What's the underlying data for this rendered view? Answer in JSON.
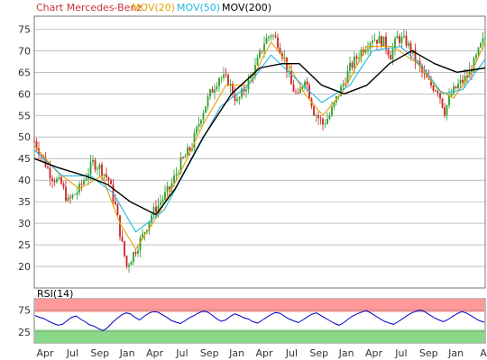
{
  "legend": [
    {
      "label": "Chart Mercedes-Benz",
      "color": "#cc3333"
    },
    {
      "label": "MOV(20)",
      "color": "#e8a000"
    },
    {
      "label": "MOV(50)",
      "color": "#22b8e0"
    },
    {
      "label": "MOV(200)",
      "color": "#000000"
    }
  ],
  "rsi_label": "RSI(14)",
  "colors": {
    "up": "#2e9e2e",
    "down": "#cc2222",
    "grid": "#999999",
    "rsi_line": "#0000cc",
    "rsi_high_band": "#ff9999",
    "rsi_low_band": "#88d888",
    "plot_bg": "#ffffff"
  },
  "chart_data": [
    {
      "type": "candlestick",
      "title": "Chart Mercedes-Benz",
      "ylim": [
        15,
        78
      ],
      "y_ticks": [
        20,
        25,
        30,
        35,
        40,
        45,
        50,
        55,
        60,
        65,
        70,
        75
      ],
      "x_ticks": [
        "Apr",
        "Jul",
        "Sep",
        "Jan",
        "Apr",
        "Jul",
        "Sep",
        "Jan",
        "Apr",
        "Jul",
        "Sep",
        "Jan",
        "Apr",
        "Jul",
        "Sep",
        "Jan",
        "A"
      ],
      "grid": true,
      "price_path": [
        [
          0,
          49
        ],
        [
          6,
          46
        ],
        [
          15,
          41
        ],
        [
          24,
          39
        ],
        [
          30,
          35
        ],
        [
          40,
          38
        ],
        [
          52,
          44
        ],
        [
          58,
          43
        ],
        [
          66,
          40
        ],
        [
          72,
          34
        ],
        [
          78,
          25
        ],
        [
          82,
          20
        ],
        [
          88,
          23
        ],
        [
          96,
          27
        ],
        [
          104,
          32
        ],
        [
          112,
          35
        ],
        [
          120,
          38
        ],
        [
          130,
          44
        ],
        [
          140,
          48
        ],
        [
          148,
          55
        ],
        [
          156,
          60
        ],
        [
          164,
          64
        ],
        [
          172,
          63
        ],
        [
          180,
          58
        ],
        [
          188,
          62
        ],
        [
          196,
          66
        ],
        [
          204,
          72
        ],
        [
          210,
          74
        ],
        [
          216,
          72
        ],
        [
          222,
          68
        ],
        [
          228,
          62
        ],
        [
          234,
          59
        ],
        [
          240,
          64
        ],
        [
          248,
          56
        ],
        [
          256,
          53
        ],
        [
          262,
          55
        ],
        [
          270,
          60
        ],
        [
          280,
          66
        ],
        [
          290,
          70
        ],
        [
          300,
          73
        ],
        [
          310,
          72
        ],
        [
          316,
          69
        ],
        [
          322,
          73
        ],
        [
          330,
          72
        ],
        [
          338,
          68
        ],
        [
          346,
          64
        ],
        [
          352,
          62
        ],
        [
          358,
          61
        ],
        [
          364,
          56
        ],
        [
          370,
          60
        ],
        [
          376,
          62
        ],
        [
          384,
          64
        ],
        [
          390,
          67
        ],
        [
          396,
          71
        ],
        [
          400,
          73
        ]
      ],
      "series": [
        {
          "name": "MOV(20)",
          "values": [
            [
              0,
              48
            ],
            [
              20,
              42
            ],
            [
              40,
              38
            ],
            [
              60,
              41
            ],
            [
              76,
              30
            ],
            [
              90,
              24
            ],
            [
              110,
              32
            ],
            [
              130,
              42
            ],
            [
              150,
              53
            ],
            [
              170,
              62
            ],
            [
              190,
              62
            ],
            [
              210,
              72
            ],
            [
              225,
              67
            ],
            [
              240,
              60
            ],
            [
              256,
              55
            ],
            [
              275,
              61
            ],
            [
              295,
              71
            ],
            [
              318,
              71
            ],
            [
              340,
              67
            ],
            [
              358,
              61
            ],
            [
              372,
              59
            ],
            [
              388,
              65
            ],
            [
              400,
              72
            ]
          ]
        },
        {
          "name": "MOV(50)",
          "values": [
            [
              0,
              47
            ],
            [
              25,
              41
            ],
            [
              50,
              41
            ],
            [
              70,
              37
            ],
            [
              90,
              28
            ],
            [
              115,
              33
            ],
            [
              140,
              45
            ],
            [
              165,
              57
            ],
            [
              190,
              62
            ],
            [
              210,
              69
            ],
            [
              230,
              64
            ],
            [
              255,
              58
            ],
            [
              280,
              62
            ],
            [
              300,
              70
            ],
            [
              325,
              71
            ],
            [
              345,
              66
            ],
            [
              362,
              60
            ],
            [
              380,
              61
            ],
            [
              400,
              68
            ]
          ]
        },
        {
          "name": "MOV(200)",
          "values": [
            [
              0,
              45
            ],
            [
              20,
              43
            ],
            [
              45,
              41
            ],
            [
              65,
              39
            ],
            [
              85,
              35
            ],
            [
              108,
              32
            ],
            [
              125,
              38
            ],
            [
              150,
              50
            ],
            [
              175,
              60
            ],
            [
              200,
              66
            ],
            [
              220,
              67
            ],
            [
              235,
              67
            ],
            [
              255,
              62
            ],
            [
              275,
              60
            ],
            [
              295,
              62
            ],
            [
              315,
              67
            ],
            [
              335,
              70
            ],
            [
              355,
              67
            ],
            [
              375,
              65
            ],
            [
              400,
              66
            ]
          ]
        }
      ]
    },
    {
      "type": "line",
      "title": "RSI(14)",
      "ylim": [
        0,
        100
      ],
      "y_ticks": [
        25,
        75
      ],
      "bands": {
        "high": [
          70,
          100
        ],
        "low": [
          0,
          30
        ]
      },
      "series": [
        {
          "name": "RSI(14)",
          "values": [
            62,
            58,
            55,
            49,
            44,
            40,
            42,
            50,
            58,
            61,
            54,
            48,
            41,
            38,
            32,
            28,
            35,
            46,
            55,
            63,
            68,
            66,
            58,
            52,
            60,
            67,
            71,
            70,
            64,
            58,
            51,
            47,
            44,
            50,
            57,
            62,
            68,
            72,
            70,
            63,
            55,
            49,
            52,
            60,
            66,
            62,
            57,
            54,
            48,
            45,
            51,
            58,
            64,
            69,
            67,
            60,
            54,
            50,
            46,
            52,
            59,
            65,
            68,
            62,
            56,
            50,
            44,
            40,
            46,
            54,
            61,
            66,
            70,
            73,
            68,
            61,
            55,
            49,
            45,
            42,
            48,
            55,
            62,
            68,
            72,
            74,
            70,
            63,
            57,
            52,
            48,
            53,
            60,
            66,
            71,
            68,
            62,
            56,
            50,
            47
          ]
        }
      ]
    }
  ]
}
